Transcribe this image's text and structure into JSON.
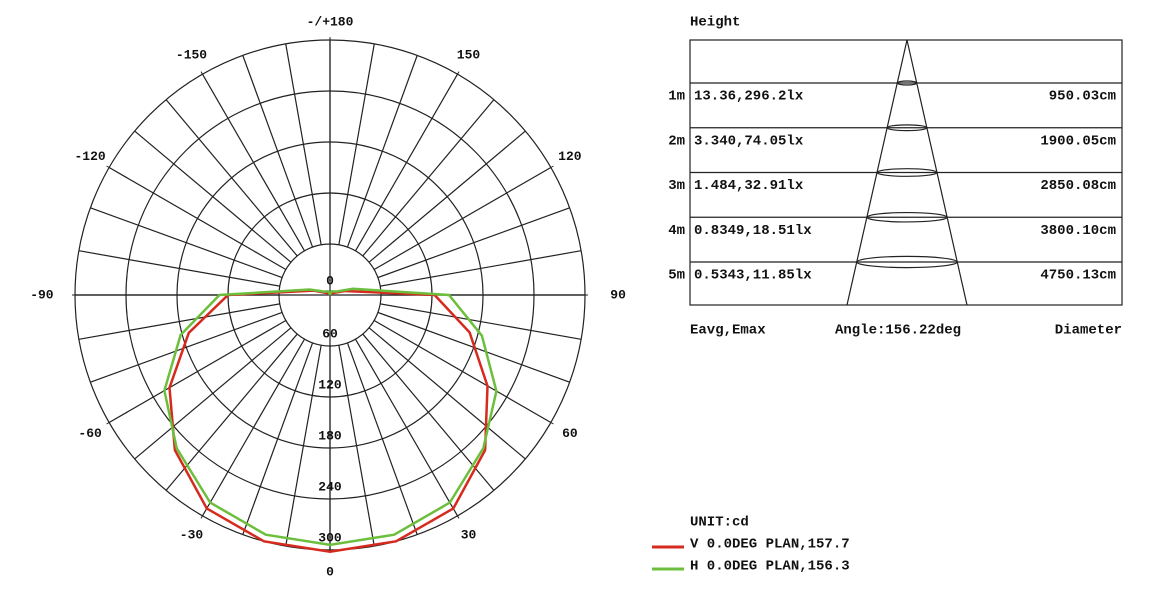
{
  "chart_data": {
    "type": "polar",
    "unit_label": "UNIT:cd",
    "x": [
      -180,
      -165,
      -150,
      -135,
      -120,
      -105,
      -90,
      -75,
      -60,
      -45,
      -30,
      -15,
      0,
      15,
      30,
      45,
      60,
      75,
      90,
      105,
      120,
      135,
      150,
      165,
      180
    ],
    "series": [
      {
        "name": "V 0.0DEG PLAN,157.7",
        "color": "#d62a1e",
        "values": [
          0,
          1,
          2,
          3,
          5,
          20,
          120,
          172,
          218,
          258,
          290,
          300,
          302,
          300,
          290,
          258,
          214,
          170,
          123,
          18,
          5,
          3,
          2,
          1,
          0
        ]
      },
      {
        "name": "H 0.0DEG PLAN,156.3",
        "color": "#6cbf3c",
        "values": [
          0,
          3,
          5,
          6,
          8,
          25,
          130,
          182,
          225,
          255,
          282,
          292,
          294,
          292,
          282,
          255,
          226,
          185,
          140,
          28,
          8,
          6,
          5,
          3,
          0
        ]
      }
    ],
    "rlim": [
      0,
      300
    ],
    "rticks": [
      0,
      60,
      120,
      180,
      240,
      300
    ],
    "xticks": [
      -150,
      -120,
      -90,
      -60,
      -30,
      0,
      30,
      60,
      90,
      120,
      150,
      {
        "value": 180,
        "label": "-/+180"
      }
    ],
    "grid": true
  },
  "beam_table": {
    "title": "Height",
    "rows": [
      [
        "1m",
        "13.36,296.2lx",
        "950.03cm"
      ],
      [
        "2m",
        "3.340,74.05lx",
        "1900.05cm"
      ],
      [
        "3m",
        "1.484,32.91lx",
        "2850.08cm"
      ],
      [
        "4m",
        "0.8349,18.51lx",
        "3800.10cm"
      ],
      [
        "5m",
        "0.5343,11.85lx",
        "4750.13cm"
      ]
    ],
    "footer": [
      "Eavg,Emax",
      "Angle:156.22deg",
      "Diameter"
    ]
  }
}
